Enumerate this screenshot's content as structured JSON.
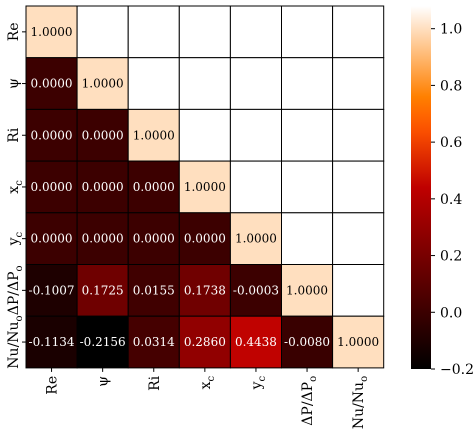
{
  "chart_data": {
    "type": "heatmap",
    "variables": [
      "Re",
      "ψ",
      "Ri",
      "x_c",
      "y_c",
      "ΔP/ΔP_o",
      "Nu/Nu_o"
    ],
    "row_labels": [
      {
        "main": "Re",
        "sub": ""
      },
      {
        "main": "ψ",
        "sub": ""
      },
      {
        "main": "Ri",
        "sub": ""
      },
      {
        "main": "x",
        "sub": "c"
      },
      {
        "main": "y",
        "sub": "c"
      },
      {
        "main": "ΔP/ΔP",
        "sub": "o"
      },
      {
        "main": "Nu/Nu",
        "sub": "o"
      }
    ],
    "col_labels": [
      {
        "main": "Re",
        "sub": ""
      },
      {
        "main": "ψ",
        "sub": ""
      },
      {
        "main": "Ri",
        "sub": ""
      },
      {
        "main": "x",
        "sub": "c"
      },
      {
        "main": "y",
        "sub": "c"
      },
      {
        "main": "ΔP/ΔP",
        "sub": "o"
      },
      {
        "main": "Nu/Nu",
        "sub": "o"
      }
    ],
    "matrix": [
      [
        "1.0000",
        null,
        null,
        null,
        null,
        null,
        null
      ],
      [
        "0.0000",
        "1.0000",
        null,
        null,
        null,
        null,
        null
      ],
      [
        "0.0000",
        "0.0000",
        "1.0000",
        null,
        null,
        null,
        null
      ],
      [
        "0.0000",
        "0.0000",
        "0.0000",
        "1.0000",
        null,
        null,
        null
      ],
      [
        "0.0000",
        "0.0000",
        "0.0000",
        "0.0000",
        "1.0000",
        null,
        null
      ],
      [
        "-0.1007",
        "0.1725",
        "0.0155",
        "0.1738",
        "-0.0003",
        "1.0000",
        null
      ],
      [
        "-0.1134",
        "-0.2156",
        "0.0314",
        "0.2860",
        "0.4438",
        "-0.0080",
        "1.0000"
      ]
    ],
    "colorbar": {
      "min": -0.2,
      "max": 1.08,
      "ticks": [
        "1.0",
        "0.8",
        "0.6",
        "0.4",
        "0.2",
        "0.0",
        "−0.2"
      ],
      "tick_values": [
        1.0,
        0.8,
        0.6,
        0.4,
        0.2,
        0.0,
        -0.2
      ],
      "colormap": "gist_heat"
    }
  }
}
